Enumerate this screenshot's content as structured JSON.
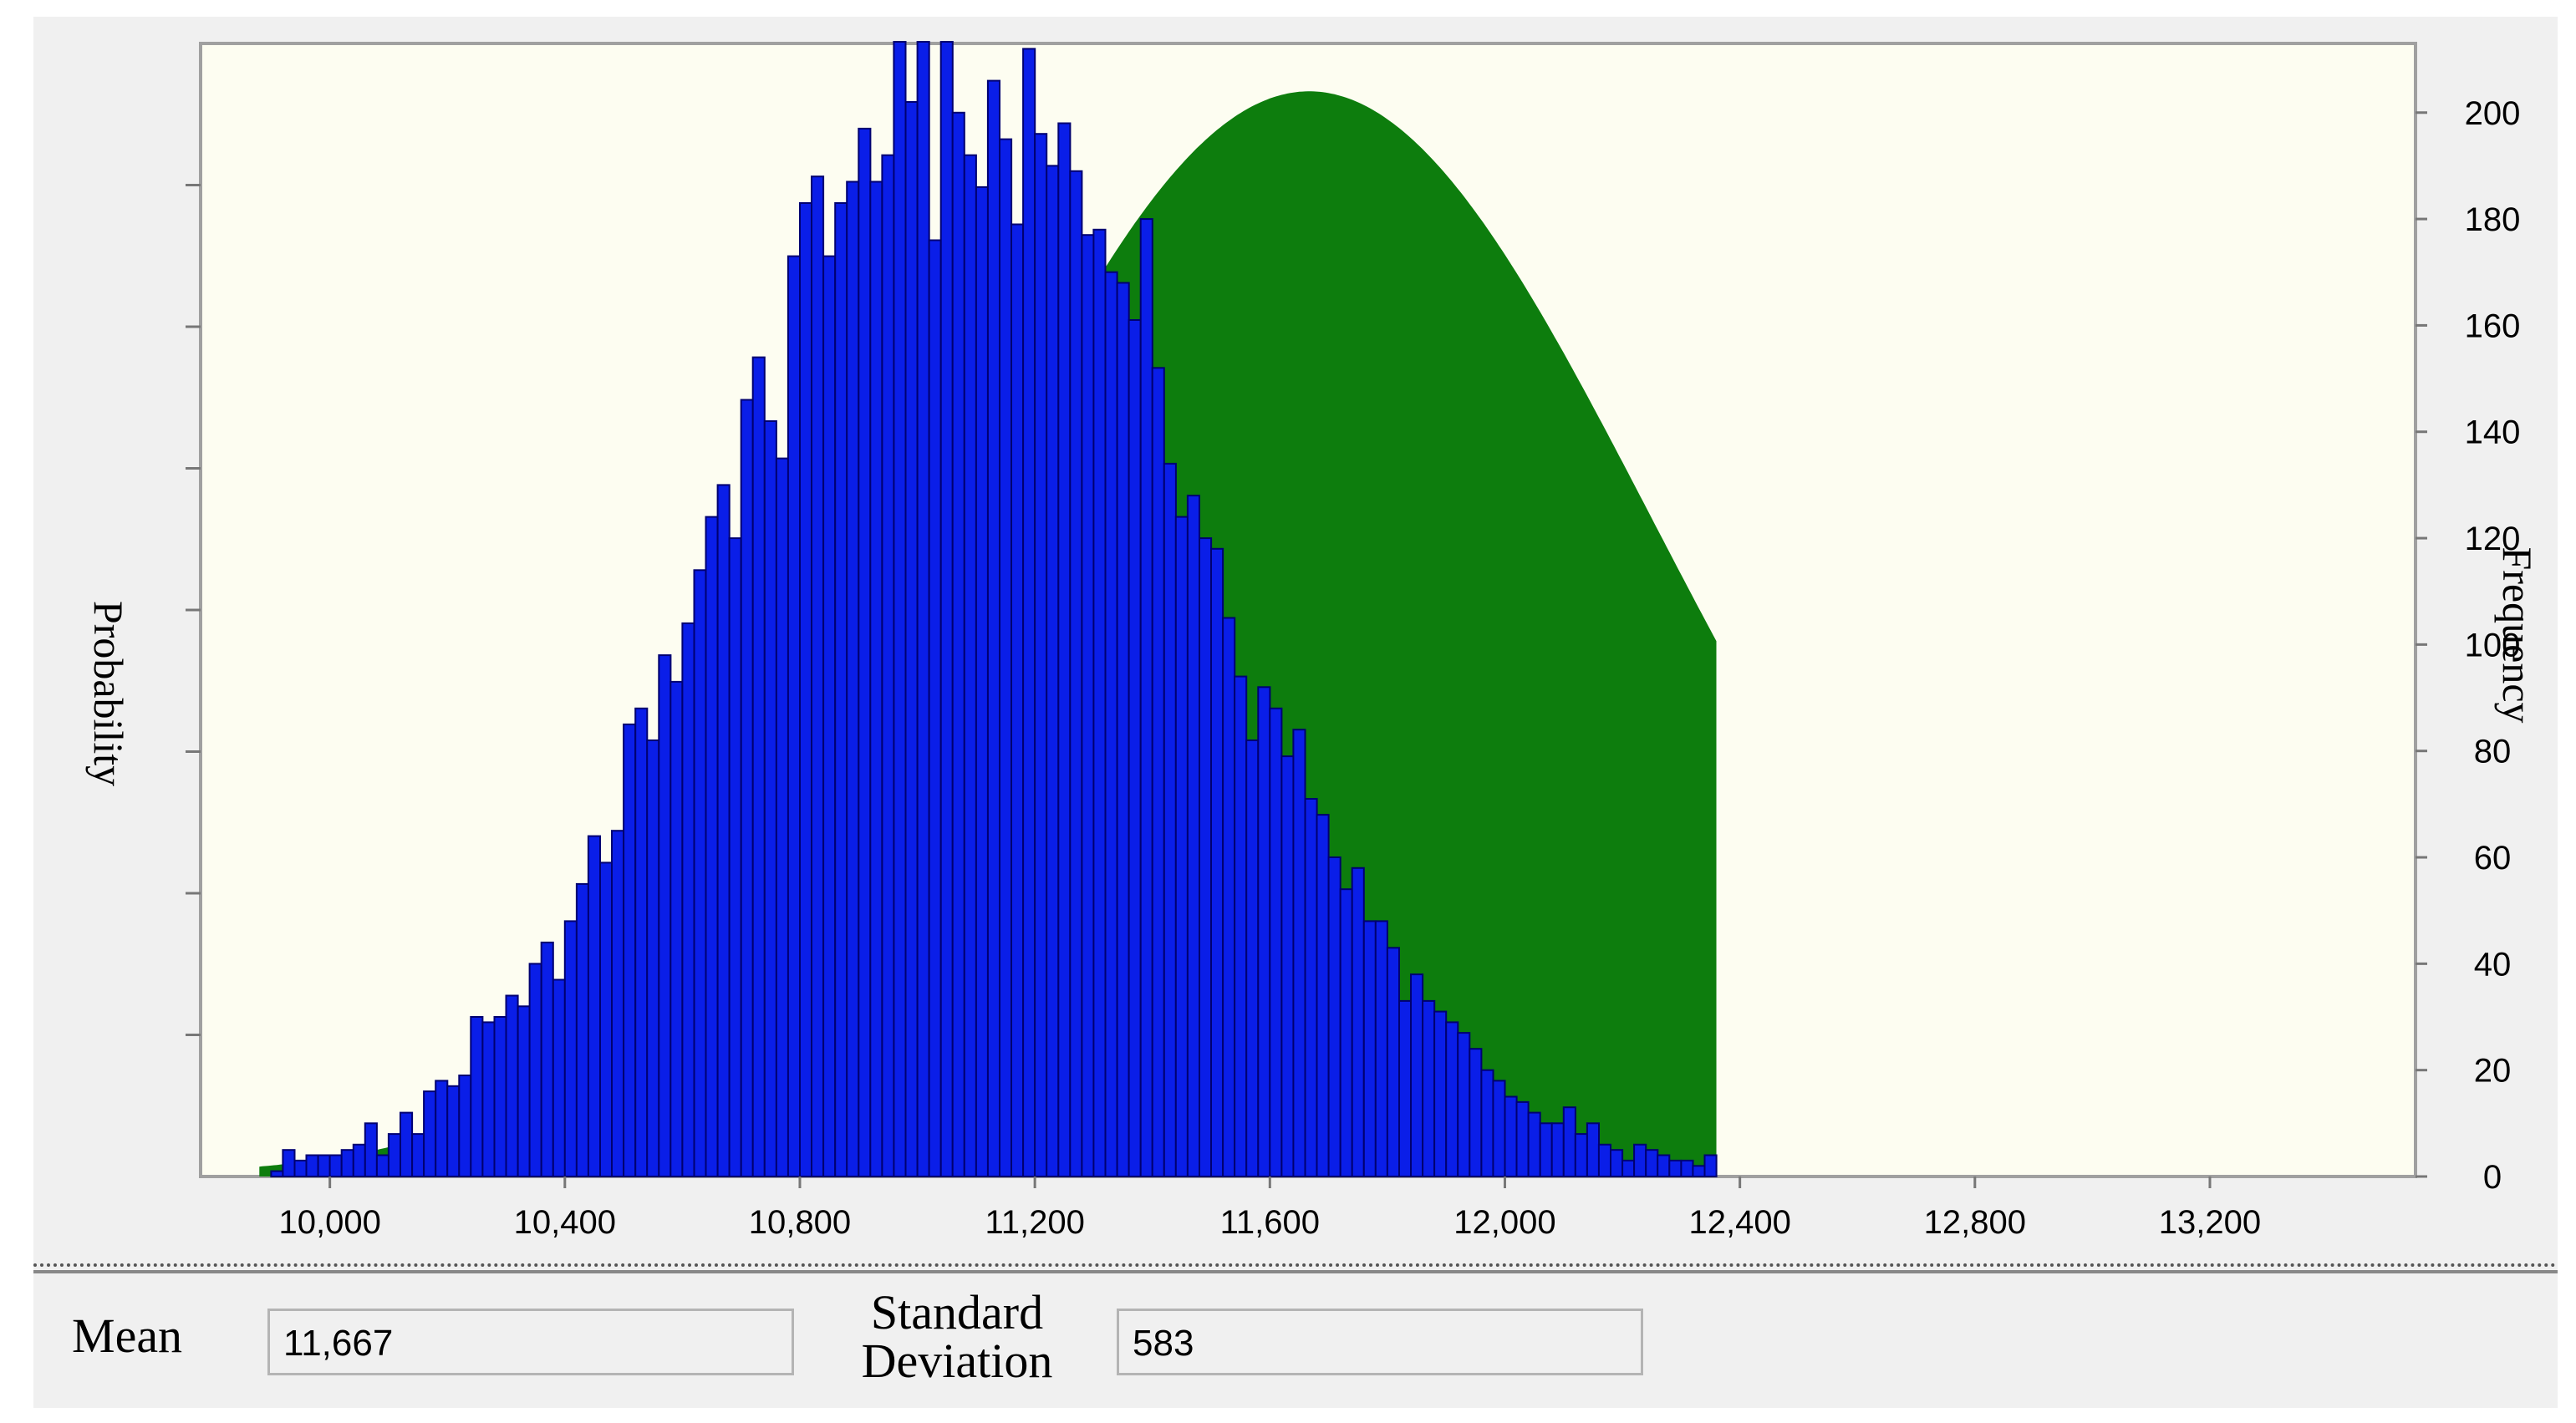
{
  "chart_data": {
    "type": "bar",
    "xlabel": "",
    "ylabel_left": "Probability",
    "ylabel_right": "Frequency",
    "x_ticks": [
      10000,
      10400,
      10800,
      11200,
      11600,
      12000,
      12400,
      12800,
      13200
    ],
    "x_tick_labels": [
      "10,000",
      "10,400",
      "10,800",
      "11,200",
      "11,600",
      "12,000",
      "12,400",
      "12,800",
      "13,200"
    ],
    "xlim": [
      9780,
      13550
    ],
    "y_ticks": [
      0,
      20,
      40,
      60,
      80,
      100,
      120,
      140,
      160,
      180,
      200
    ],
    "y_tick_labels": [
      "0",
      "20",
      "40",
      "60",
      "80",
      "100",
      "120",
      "140",
      "160",
      "180",
      "200"
    ],
    "ylim": [
      0,
      213
    ],
    "bin_width": 20,
    "bin_start": 9880,
    "values": [
      0,
      1,
      5,
      3,
      4,
      4,
      4,
      5,
      6,
      10,
      4,
      8,
      12,
      8,
      16,
      18,
      17,
      19,
      30,
      29,
      30,
      34,
      32,
      40,
      44,
      37,
      48,
      55,
      64,
      59,
      65,
      85,
      88,
      82,
      98,
      93,
      104,
      114,
      124,
      130,
      120,
      146,
      154,
      142,
      135,
      173,
      183,
      188,
      173,
      183,
      187,
      197,
      187,
      192,
      215,
      202,
      214,
      176,
      219,
      200,
      192,
      186,
      206,
      195,
      179,
      212,
      196,
      190,
      198,
      189,
      177,
      178,
      170,
      168,
      161,
      180,
      152,
      134,
      124,
      128,
      120,
      118,
      105,
      94,
      82,
      92,
      88,
      79,
      84,
      71,
      68,
      60,
      54,
      58,
      48,
      48,
      43,
      33,
      38,
      33,
      31,
      29,
      27,
      24,
      20,
      18,
      15,
      14,
      12,
      10,
      10,
      13,
      8,
      10,
      6,
      5,
      3,
      6,
      5,
      4,
      3,
      3,
      2,
      4
    ],
    "fit_curve": {
      "mean": 11667,
      "sd": 583,
      "peak": 204
    },
    "colors": {
      "bars": "#0a1ee8",
      "bar_edge": "#000070",
      "fit": "#0d7d0d",
      "plot_bg": "#fdfdf1",
      "frame": "#a0a0a0"
    }
  },
  "stats": {
    "mean_label": "Mean",
    "mean_value": "11,667",
    "sd_label_line1": "Standard",
    "sd_label_line2": "Deviation",
    "sd_value": "583"
  }
}
